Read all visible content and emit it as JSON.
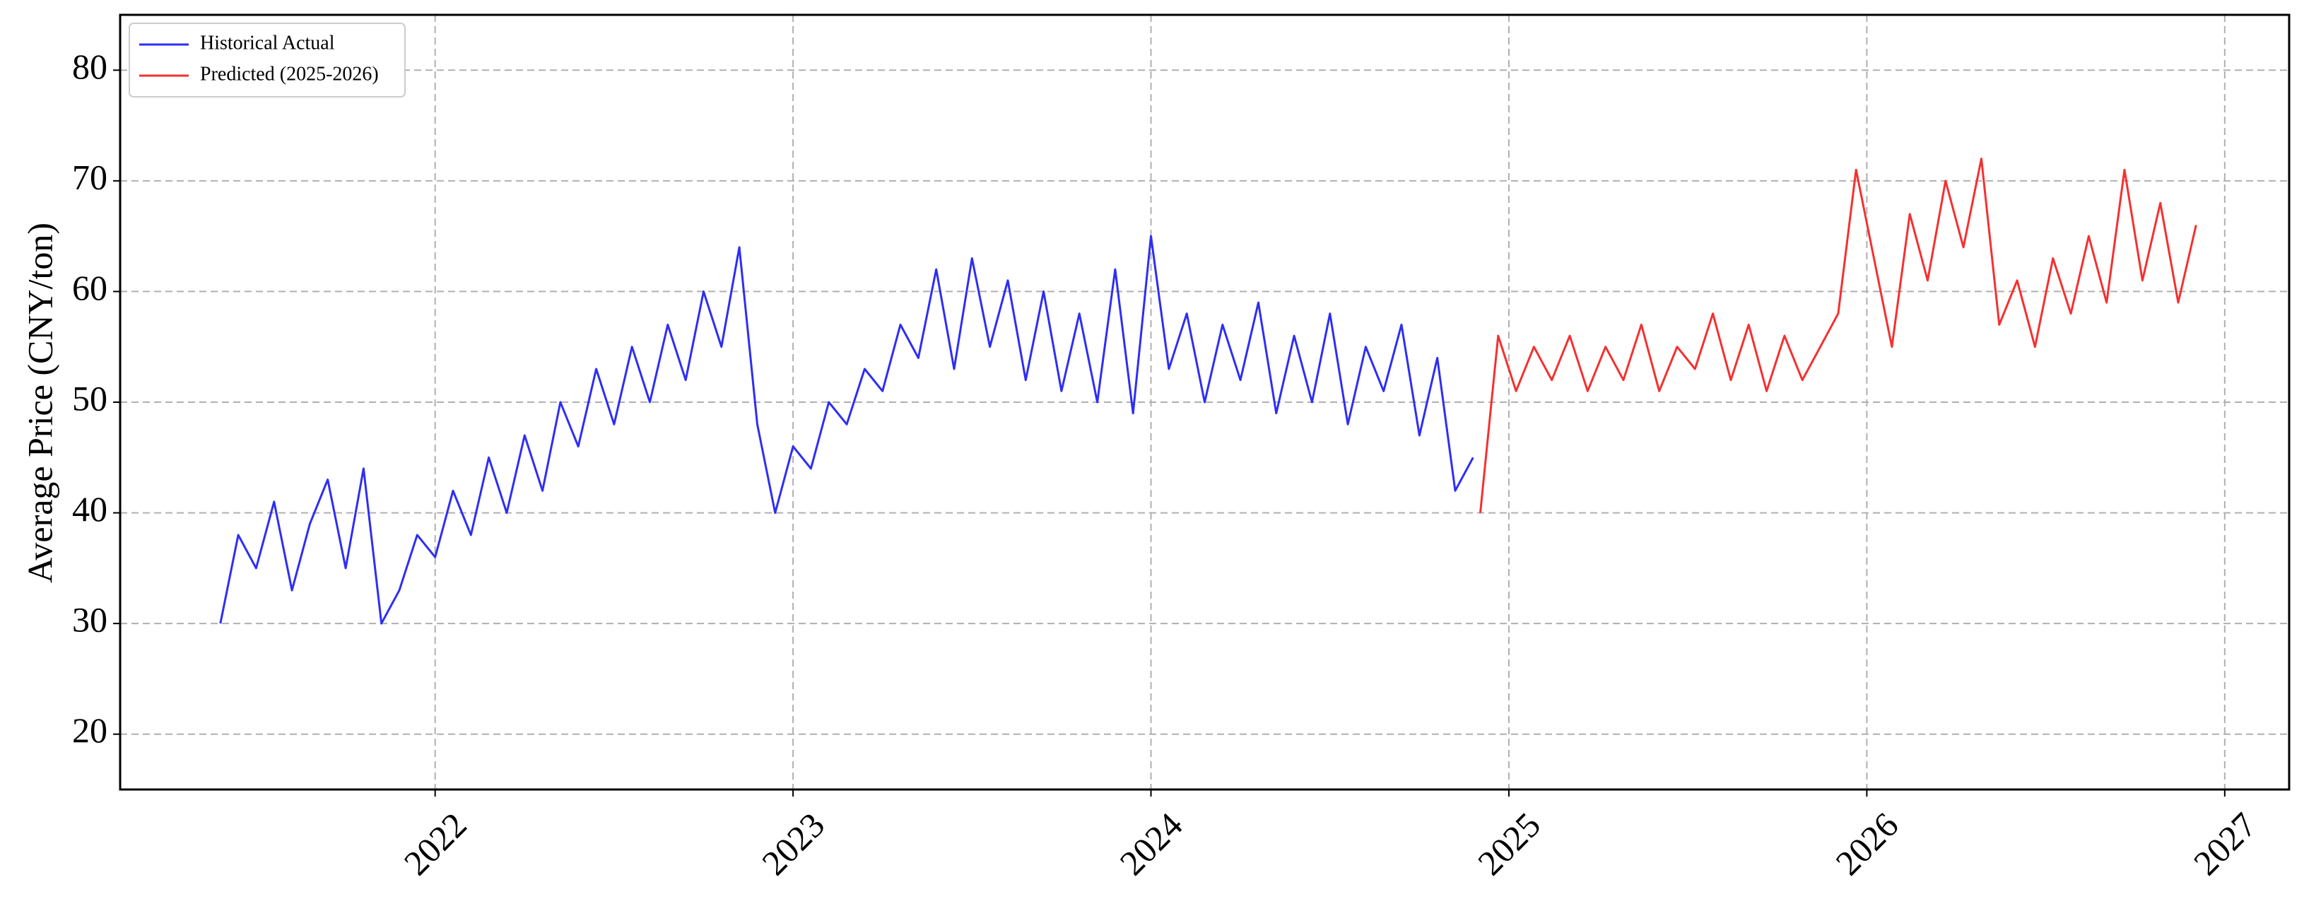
{
  "chart_data": {
    "type": "line",
    "ylabel": "Average Price (CNY/ton)",
    "xlim": [
      2021.12,
      2027.18
    ],
    "xticks": [
      2022,
      2023,
      2024,
      2025,
      2026,
      2027
    ],
    "ylim": [
      15,
      85
    ],
    "yticks": [
      20,
      30,
      40,
      50,
      60,
      70,
      80
    ],
    "grid": true,
    "legend": "upper left",
    "series": [
      {
        "name": "Historical Actual",
        "color": "#2e2ef5",
        "x": [
          2021.4,
          2021.45,
          2021.5,
          2021.55,
          2021.6,
          2021.65,
          2021.7,
          2021.75,
          2021.8,
          2021.85,
          2021.9,
          2021.95,
          2022.0,
          2022.05,
          2022.1,
          2022.15,
          2022.2,
          2022.25,
          2022.3,
          2022.35,
          2022.4,
          2022.45,
          2022.5,
          2022.55,
          2022.6,
          2022.65,
          2022.7,
          2022.75,
          2022.8,
          2022.85,
          2022.9,
          2022.95,
          2023.0,
          2023.05,
          2023.1,
          2023.15,
          2023.2,
          2023.25,
          2023.3,
          2023.35,
          2023.4,
          2023.45,
          2023.5,
          2023.55,
          2023.6,
          2023.65,
          2023.7,
          2023.75,
          2023.8,
          2023.85,
          2023.9,
          2023.95,
          2024.0,
          2024.05,
          2024.1,
          2024.15,
          2024.2,
          2024.25,
          2024.3,
          2024.35,
          2024.4,
          2024.45,
          2024.5,
          2024.55,
          2024.6,
          2024.65,
          2024.7,
          2024.75,
          2024.8,
          2024.85,
          2024.9
        ],
        "values": [
          30,
          38,
          35,
          41,
          33,
          39,
          43,
          35,
          44,
          30,
          33,
          38,
          36,
          42,
          38,
          45,
          40,
          47,
          42,
          50,
          46,
          53,
          48,
          55,
          50,
          57,
          52,
          60,
          55,
          64,
          48,
          40,
          46,
          44,
          50,
          48,
          53,
          51,
          57,
          54,
          62,
          53,
          63,
          55,
          61,
          52,
          60,
          51,
          58,
          50,
          62,
          49,
          65,
          53,
          58,
          50,
          57,
          52,
          59,
          49,
          56,
          50,
          58,
          48,
          55,
          51,
          57,
          47,
          54,
          42,
          45
        ]
      },
      {
        "name": "Predicted (2025-2026)",
        "color": "#f53030",
        "x": [
          2024.92,
          2024.97,
          2025.02,
          2025.07,
          2025.12,
          2025.17,
          2025.22,
          2025.27,
          2025.32,
          2025.37,
          2025.42,
          2025.47,
          2025.52,
          2025.57,
          2025.62,
          2025.67,
          2025.72,
          2025.77,
          2025.82,
          2025.87,
          2025.92,
          2025.97,
          2026.02,
          2026.07,
          2026.12,
          2026.17,
          2026.22,
          2026.27,
          2026.32,
          2026.37,
          2026.42,
          2026.47,
          2026.52,
          2026.57,
          2026.62,
          2026.67,
          2026.72,
          2026.77,
          2026.82,
          2026.87,
          2026.92
        ],
        "values": [
          40,
          56,
          51,
          55,
          52,
          56,
          51,
          55,
          52,
          57,
          51,
          55,
          53,
          58,
          52,
          57,
          51,
          56,
          52,
          55,
          58,
          71,
          63,
          55,
          67,
          61,
          70,
          64,
          72,
          57,
          61,
          55,
          63,
          58,
          65,
          59,
          71,
          61,
          68,
          59,
          66
        ]
      }
    ]
  }
}
